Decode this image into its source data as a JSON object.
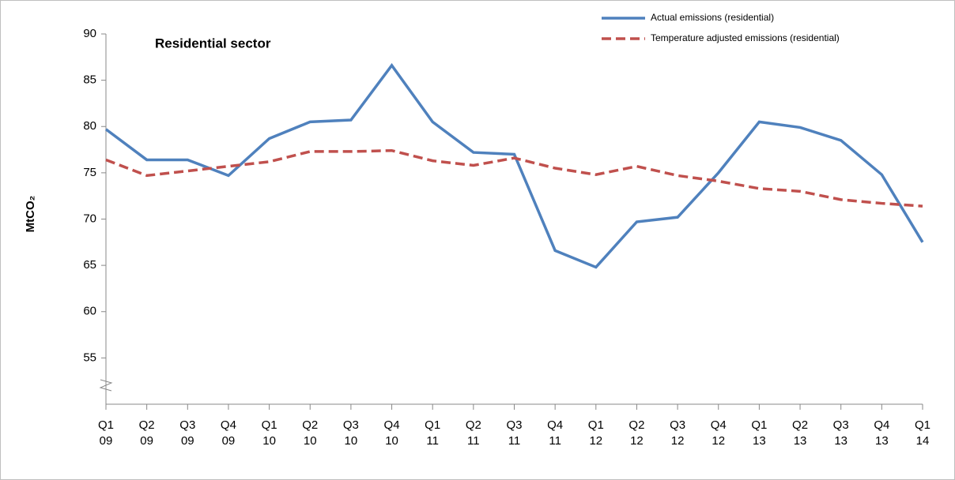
{
  "chart_data": {
    "type": "line",
    "title": "Residential sector",
    "y_label": "MtCO₂",
    "categories": [
      "Q1 09",
      "Q2 09",
      "Q3 09",
      "Q4 09",
      "Q1 10",
      "Q2 10",
      "Q3 10",
      "Q4 10",
      "Q1 11",
      "Q2 11",
      "Q3 11",
      "Q4 11",
      "Q1 12",
      "Q2 12",
      "Q3 12",
      "Q4 12",
      "Q1 13",
      "Q2 13",
      "Q3 13",
      "Q4 13",
      "Q1 14"
    ],
    "series": [
      {
        "name": "Actual emissions (residential)",
        "color": "#4f81bd",
        "dashed": false,
        "values": [
          79.7,
          76.4,
          76.4,
          74.7,
          78.7,
          80.5,
          80.7,
          86.6,
          80.5,
          77.2,
          77.0,
          66.6,
          64.8,
          69.7,
          70.2,
          75.0,
          80.5,
          79.9,
          78.5,
          74.8,
          67.5
        ]
      },
      {
        "name": "Temperature adjusted emissions (residential)",
        "color": "#c0504d",
        "dashed": true,
        "values": [
          76.4,
          74.7,
          75.2,
          75.7,
          76.2,
          77.3,
          77.3,
          77.4,
          76.3,
          75.8,
          76.6,
          75.5,
          74.8,
          75.7,
          74.7,
          74.1,
          73.3,
          73.0,
          72.1,
          71.7,
          71.4
        ]
      }
    ],
    "ylim": [
      50,
      90
    ],
    "yticks": [
      55,
      60,
      65,
      70,
      75,
      80,
      85,
      90
    ],
    "grid": false
  }
}
